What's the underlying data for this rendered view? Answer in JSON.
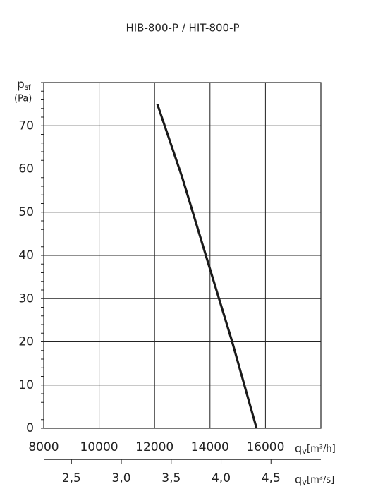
{
  "chart_data": {
    "type": "line",
    "title": "HIB-800-P / HIT-800-P",
    "y_label": {
      "main": "p",
      "sub": "sf",
      "unit": "(Pa)"
    },
    "x_label": {
      "main": "q",
      "sub": "V",
      "unit": "[m³/h]"
    },
    "x2_label": {
      "main": "q",
      "sub": "V",
      "unit": "[m³/s]"
    },
    "x": [
      12100,
      13000,
      13850,
      14800,
      15680
    ],
    "series": [
      {
        "name": "HIB-800-P / HIT-800-P",
        "color": "#1a1a1a",
        "values": [
          75,
          58,
          40,
          20,
          0
        ]
      }
    ],
    "xlim": [
      8000,
      18000
    ],
    "xticks": [
      8000,
      10000,
      12000,
      14000,
      16000
    ],
    "x2lim": [
      2.2222,
      5
    ],
    "x2ticks": [
      {
        "value": 2.5,
        "label": "2,5"
      },
      {
        "value": 3.0,
        "label": "3,0"
      },
      {
        "value": 3.5,
        "label": "3,5"
      },
      {
        "value": 4.0,
        "label": "4,0"
      },
      {
        "value": 4.5,
        "label": "4,5"
      }
    ],
    "ylim": [
      0,
      80
    ],
    "yticks": [
      0,
      10,
      20,
      30,
      40,
      50,
      60,
      70
    ],
    "grid": true
  }
}
